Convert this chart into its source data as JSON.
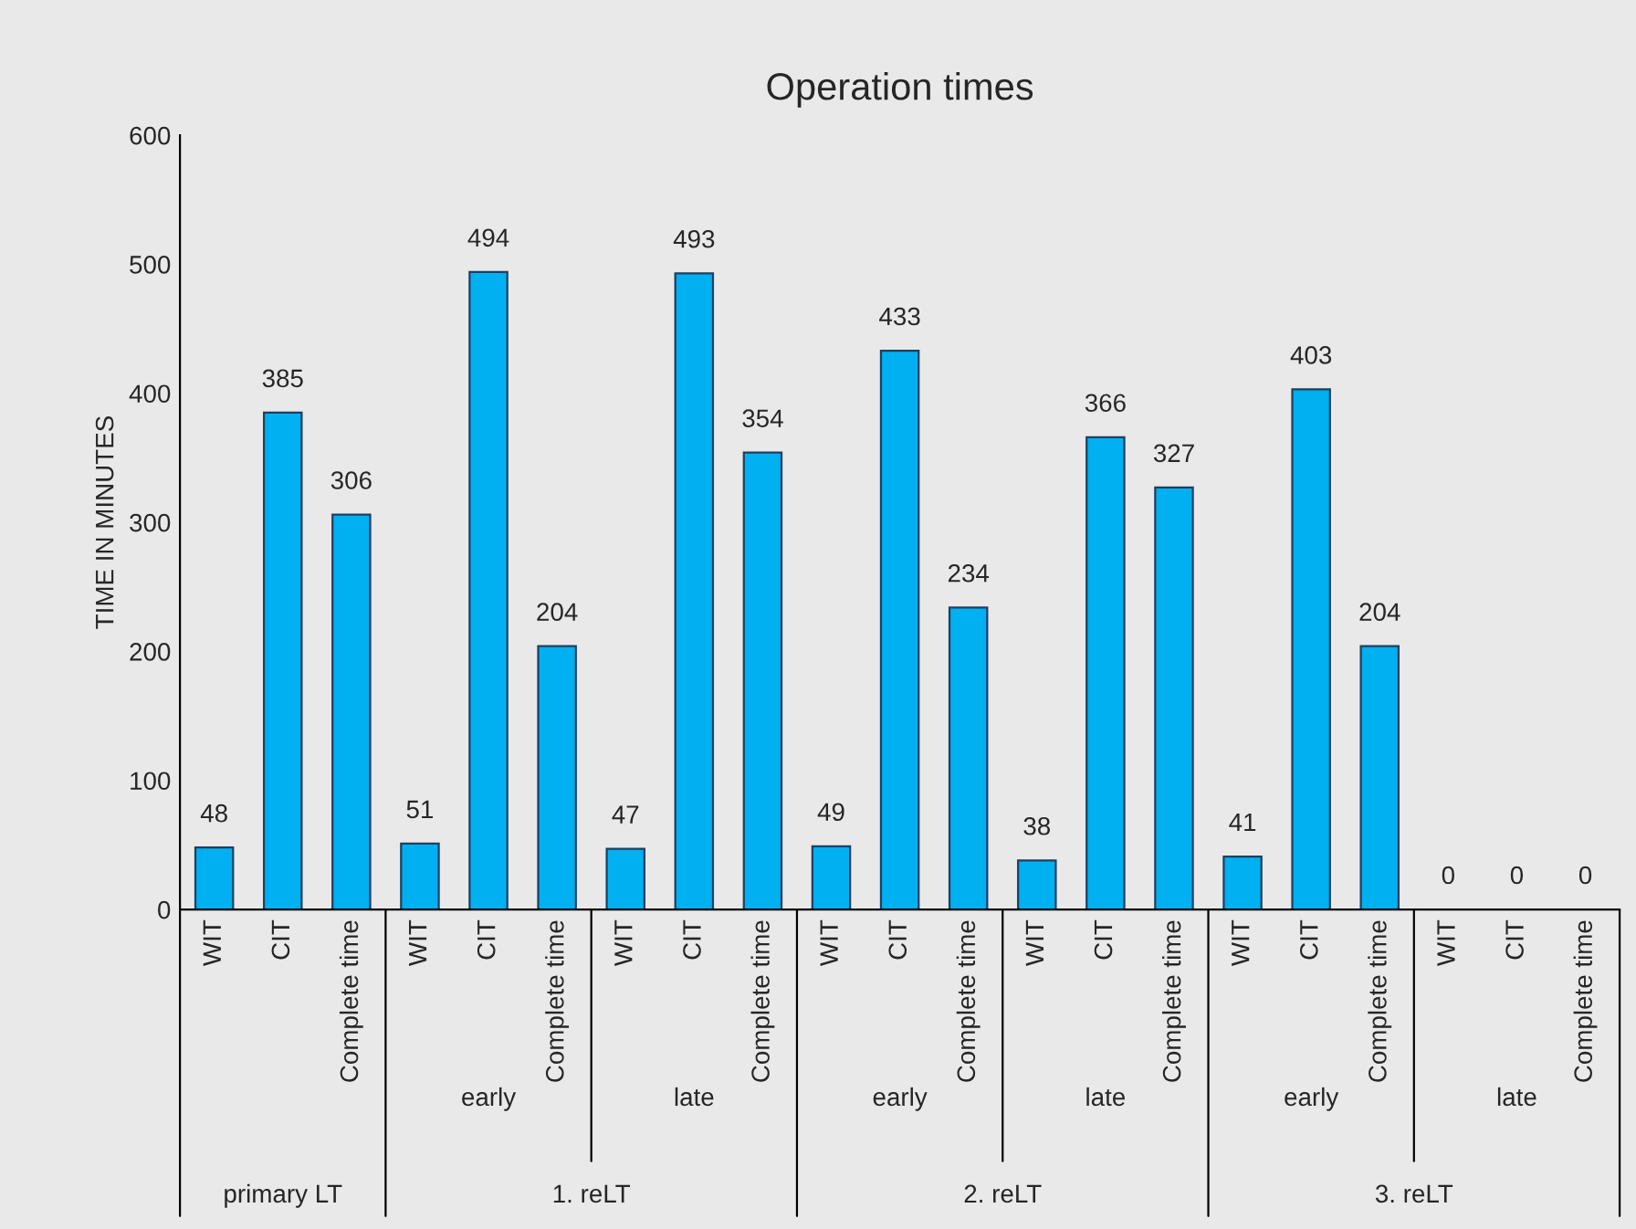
{
  "chart_data": {
    "type": "bar",
    "title": "Operation times",
    "ylabel": "TIME IN MINUTES",
    "categories": [
      "WIT",
      "CIT",
      "Complete time",
      "WIT",
      "CIT",
      "Complete time",
      "WIT",
      "CIT",
      "Complete time",
      "WIT",
      "CIT",
      "Complete time",
      "WIT",
      "CIT",
      "Complete time",
      "WIT",
      "CIT",
      "Complete time",
      "WIT",
      "CIT",
      "Complete time"
    ],
    "values": [
      48,
      385,
      306,
      51,
      494,
      204,
      47,
      493,
      354,
      49,
      433,
      234,
      38,
      366,
      327,
      41,
      403,
      204,
      0,
      0,
      0
    ],
    "color": "#00b0f0",
    "ylim": [
      0,
      600
    ],
    "yticks": [
      0,
      100,
      200,
      300,
      400,
      500,
      600
    ],
    "data_labels": true,
    "grid": false,
    "legend": false,
    "annotations": [
      "early",
      "late",
      "early",
      "late",
      "early",
      "late",
      "primary LT",
      "1. reLT",
      "2. reLT",
      "3. reLT"
    ]
  }
}
